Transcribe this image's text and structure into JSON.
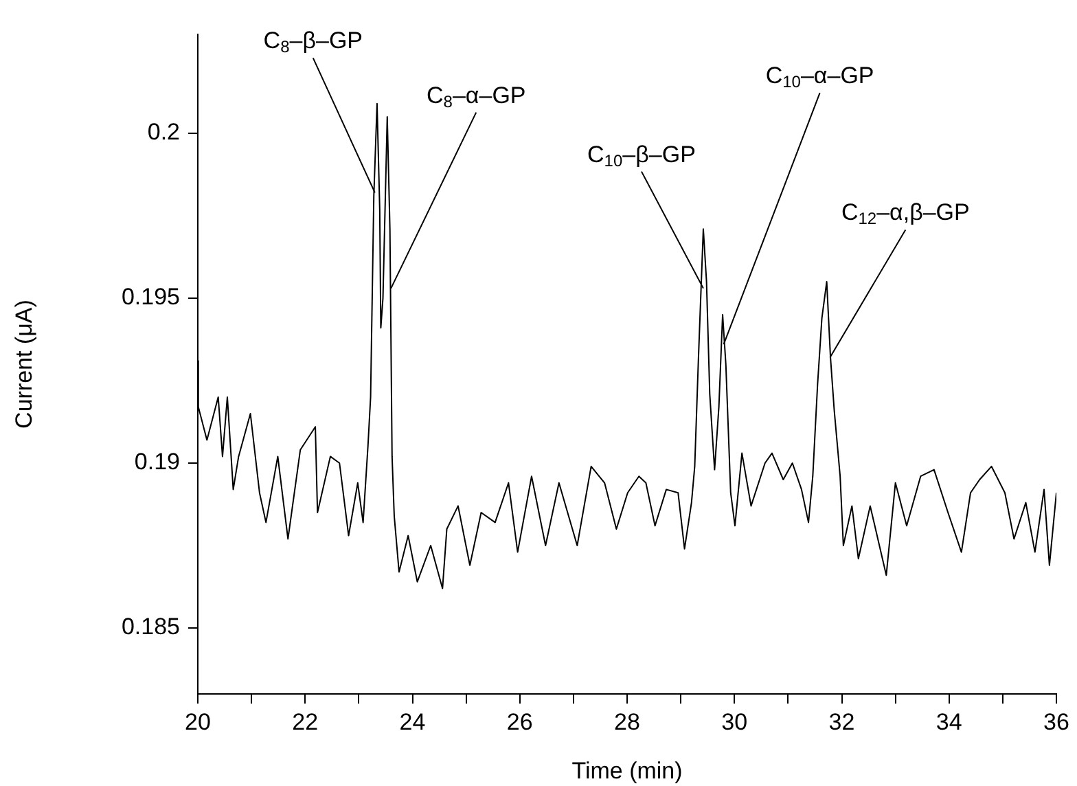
{
  "chart_data": {
    "type": "line",
    "xlabel": "Time (min)",
    "ylabel": "Current (μA)",
    "xlim": [
      20,
      36
    ],
    "ylim": [
      0.183,
      0.203
    ],
    "xticks": [
      20,
      {
        "value": 21,
        "label": null
      },
      22,
      {
        "value": 23,
        "label": null
      },
      24,
      {
        "value": 25,
        "label": null
      },
      26,
      {
        "value": 27,
        "label": null
      },
      28,
      {
        "value": 29,
        "label": null
      },
      30,
      {
        "value": 31,
        "label": null
      },
      32,
      {
        "value": 33,
        "label": null
      },
      34,
      {
        "value": 35,
        "label": null
      },
      36
    ],
    "yticks": [
      0.185,
      0.19,
      0.195,
      0.2
    ],
    "grid": false,
    "legend": false,
    "marker": "none",
    "line_style": "solid",
    "series": [
      {
        "color": "#000000",
        "x": [
          20.0,
          20.01,
          20.17,
          20.38,
          20.46,
          20.55,
          20.66,
          20.76,
          20.98,
          21.15,
          21.27,
          21.49,
          21.68,
          21.91,
          22.19,
          22.23,
          22.47,
          22.64,
          22.81,
          22.98,
          23.08,
          23.17,
          23.22,
          23.28,
          23.34,
          23.39,
          23.41,
          23.45,
          23.53,
          23.58,
          23.62,
          23.66,
          23.75,
          23.92,
          24.09,
          24.34,
          24.56,
          24.64,
          24.85,
          25.07,
          25.28,
          25.54,
          25.79,
          25.96,
          26.22,
          26.48,
          26.73,
          27.07,
          27.33,
          27.58,
          27.8,
          28.01,
          28.22,
          28.35,
          28.52,
          28.73,
          28.95,
          29.07,
          29.2,
          29.26,
          29.33,
          29.42,
          29.48,
          29.54,
          29.63,
          29.71,
          29.78,
          29.84,
          29.93,
          30.01,
          30.14,
          30.31,
          30.57,
          30.7,
          30.91,
          31.08,
          31.25,
          31.38,
          31.46,
          31.55,
          31.63,
          31.72,
          31.79,
          31.86,
          31.97,
          32.03,
          32.19,
          32.31,
          32.53,
          32.83,
          33.0,
          33.21,
          33.47,
          33.72,
          33.98,
          34.23,
          34.4,
          34.57,
          34.79,
          35.04,
          35.21,
          35.43,
          35.6,
          35.77,
          35.87,
          36.0
        ],
        "values": [
          0.1931,
          0.1917,
          0.1907,
          0.192,
          0.1902,
          0.192,
          0.1892,
          0.1902,
          0.1915,
          0.1891,
          0.1882,
          0.1902,
          0.1877,
          0.1904,
          0.1911,
          0.1885,
          0.1902,
          0.19,
          0.1878,
          0.1894,
          0.1882,
          0.1905,
          0.192,
          0.1981,
          0.2009,
          0.1977,
          0.1941,
          0.195,
          0.2005,
          0.1971,
          0.1902,
          0.1884,
          0.1867,
          0.1878,
          0.1864,
          0.1875,
          0.1862,
          0.188,
          0.1887,
          0.1869,
          0.1885,
          0.1882,
          0.1894,
          0.1873,
          0.1896,
          0.1875,
          0.1894,
          0.1875,
          0.1899,
          0.1894,
          0.188,
          0.1891,
          0.1896,
          0.1894,
          0.1881,
          0.1892,
          0.1891,
          0.1874,
          0.1888,
          0.1899,
          0.1932,
          0.1971,
          0.1955,
          0.1921,
          0.1898,
          0.1917,
          0.1945,
          0.193,
          0.1891,
          0.1881,
          0.1903,
          0.1887,
          0.19,
          0.1903,
          0.1895,
          0.19,
          0.1892,
          0.1882,
          0.1896,
          0.1924,
          0.1944,
          0.1955,
          0.1932,
          0.1916,
          0.1896,
          0.1875,
          0.1887,
          0.1871,
          0.1887,
          0.1866,
          0.1894,
          0.1881,
          0.1896,
          0.1898,
          0.1885,
          0.1873,
          0.1891,
          0.1895,
          0.1899,
          0.1891,
          0.1877,
          0.1888,
          0.1873,
          0.1892,
          0.1869,
          0.1891
        ]
      }
    ],
    "annotations": [
      {
        "text": "C$_{8}$–β–GP",
        "x": 23.3,
        "y": 0.1982
      },
      {
        "text": "C$_{8}$–α–GP",
        "x": 23.6,
        "y": 0.1953
      },
      {
        "text": "C$_{10}$–β–GP",
        "x": 29.42,
        "y": 0.1953
      },
      {
        "text": "C$_{10}$–α–GP",
        "x": 29.8,
        "y": 0.1936
      },
      {
        "text": "C$_{12}$–α,β–GP",
        "x": 31.78,
        "y": 0.1932
      }
    ]
  }
}
